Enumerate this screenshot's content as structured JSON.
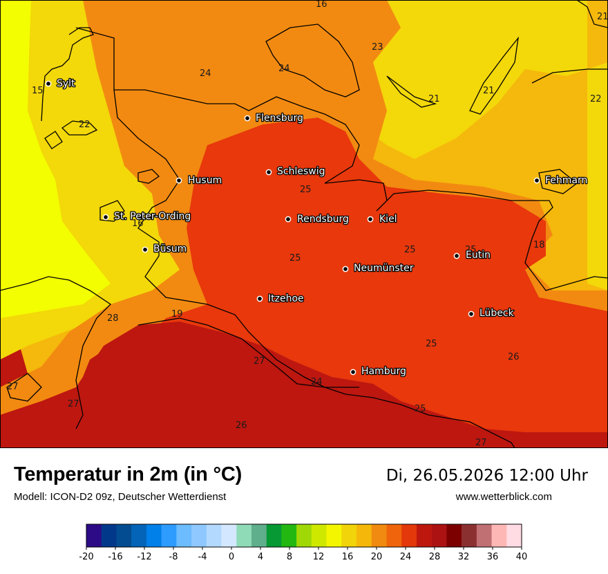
{
  "header": {
    "title": "Temperatur in 2m (in °C)",
    "model": "Modell: ICON-D2 09z, Deutscher Wetterdienst",
    "datetime": "Di, 26.05.2026 12:00 Uhr",
    "website": "www.wetterblick.com"
  },
  "cities": [
    {
      "name": "Sylt"
    },
    {
      "name": "Flensburg"
    },
    {
      "name": "Schleswig"
    },
    {
      "name": "Husum"
    },
    {
      "name": "St. Peter-Ording"
    },
    {
      "name": "Rendsburg"
    },
    {
      "name": "Kiel"
    },
    {
      "name": "Fehmarn"
    },
    {
      "name": "Büsum"
    },
    {
      "name": "Neumünster"
    },
    {
      "name": "Eutin"
    },
    {
      "name": "Itzehoe"
    },
    {
      "name": "Lübeck"
    },
    {
      "name": "Hamburg"
    }
  ],
  "values": [
    "16",
    "21",
    "23",
    "24",
    "24",
    "15",
    "21",
    "21",
    "22",
    "22",
    "25",
    "16",
    "25",
    "25",
    "25",
    "18",
    "28",
    "19",
    "25",
    "26",
    "27",
    "24",
    "27",
    "27",
    "26",
    "25",
    "27"
  ],
  "legend": {
    "ticks": [
      "-20",
      "-16",
      "-12",
      "-8",
      "-4",
      "0",
      "4",
      "8",
      "12",
      "16",
      "20",
      "24",
      "28",
      "32",
      "36",
      "40"
    ],
    "colors": [
      "#2d0b87",
      "#02388a",
      "#034c91",
      "#0464b8",
      "#0080e8",
      "#2e9bff",
      "#6cbcff",
      "#8fc7ff",
      "#b3d9ff",
      "#d3e8ff",
      "#90dbb7",
      "#5fae8c",
      "#079a34",
      "#22b811",
      "#a0d807",
      "#cfe800",
      "#f4f600",
      "#f1d40a",
      "#f5b70a",
      "#f18a10",
      "#f0640b",
      "#e3380a",
      "#be180e",
      "#ad1213",
      "#7c0000",
      "#8b3031",
      "#c07073",
      "#fdb7b4",
      "#ffdbe4"
    ]
  },
  "colors": {
    "t15": "#f3ff00",
    "t18": "#f3d80a",
    "t20": "#f5b80c",
    "t22": "#f28a11",
    "t24": "#e8380c",
    "t26": "#bd1710"
  }
}
